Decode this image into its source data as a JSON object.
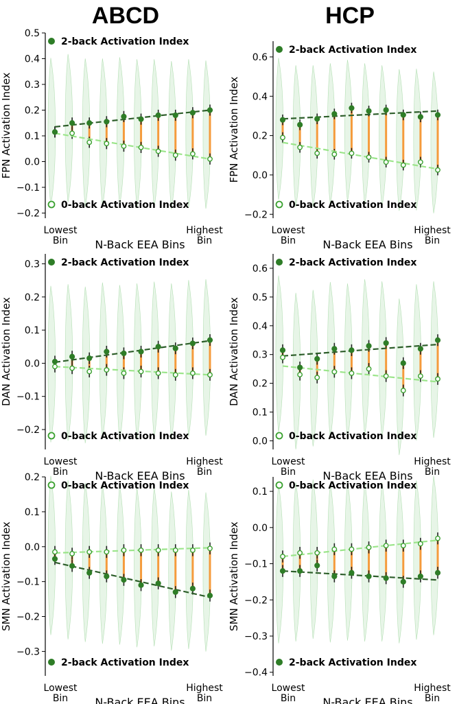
{
  "titles": {
    "left": "ABCD",
    "right": "HCP"
  },
  "colors": {
    "two_back": "#2e7d27",
    "zero_back": "#39a02e",
    "trend2": "#2d5e2a",
    "trend0": "#9be58a",
    "error": "#f59b3c",
    "violin": "#c9e9c9"
  },
  "chart_data": [
    {
      "type": "scatter",
      "id": "abcd-fpn",
      "ylabel": "FPN Activation Index",
      "xlabel": "N-Back EEA Bins",
      "x_tick_labels": [
        "Lowest\nBin",
        "Highest\nBin"
      ],
      "ylim": [
        -0.22,
        0.5
      ],
      "yticks": [
        -0.2,
        -0.1,
        0.0,
        0.1,
        0.2,
        0.3,
        0.4,
        0.5
      ],
      "y_tick_labels": [
        "−0.2",
        "−0.1",
        "0.0",
        "0.1",
        "0.2",
        "0.3",
        "0.4",
        "0.5"
      ],
      "legend_top": "2-back Activation Index",
      "legend_bottom": "0-back Activation Index",
      "bins": 10,
      "two_back": [
        0.115,
        0.15,
        0.15,
        0.155,
        0.175,
        0.165,
        0.18,
        0.18,
        0.19,
        0.2
      ],
      "zero_back": [
        0.115,
        0.11,
        0.075,
        0.07,
        0.06,
        0.055,
        0.04,
        0.025,
        0.03,
        0.01
      ],
      "trend_two_back": [
        0.135,
        0.2
      ],
      "trend_zero_back": [
        0.11,
        0.01
      ]
    },
    {
      "type": "scatter",
      "id": "hcp-fpn",
      "ylabel": "FPN Activation Index",
      "xlabel": "N-Back EEA Bins",
      "x_tick_labels": [
        "Lowest\nBin",
        "Highest\nBin"
      ],
      "ylim": [
        -0.22,
        0.68
      ],
      "yticks": [
        -0.2,
        0.0,
        0.2,
        0.4,
        0.6
      ],
      "y_tick_labels": [
        "−0.2",
        "0.0",
        "0.2",
        "0.4",
        "0.6"
      ],
      "legend_top": "2-back Activation Index",
      "legend_bottom": "0-back Activation Index",
      "bins": 10,
      "two_back": [
        0.28,
        0.255,
        0.285,
        0.31,
        0.34,
        0.325,
        0.33,
        0.305,
        0.295,
        0.305
      ],
      "zero_back": [
        0.19,
        0.14,
        0.11,
        0.105,
        0.11,
        0.09,
        0.065,
        0.05,
        0.065,
        0.025
      ],
      "trend_two_back": [
        0.285,
        0.325
      ],
      "trend_zero_back": [
        0.165,
        0.03
      ]
    },
    {
      "type": "scatter",
      "id": "abcd-dan",
      "ylabel": "DAN Activation Index",
      "xlabel": "N-Back EEA Bins",
      "x_tick_labels": [
        "Lowest\nBin",
        "Highest\nBin"
      ],
      "ylim": [
        -0.26,
        0.33
      ],
      "yticks": [
        -0.2,
        -0.1,
        0.0,
        0.1,
        0.2,
        0.3
      ],
      "y_tick_labels": [
        "−0.2",
        "−0.1",
        "0.0",
        "0.1",
        "0.2",
        "0.3"
      ],
      "legend_top": "2-back Activation Index",
      "legend_bottom": "0-back Activation Index",
      "bins": 10,
      "two_back": [
        0.005,
        0.02,
        0.015,
        0.035,
        0.03,
        0.035,
        0.05,
        0.045,
        0.06,
        0.07
      ],
      "zero_back": [
        -0.01,
        -0.015,
        -0.025,
        -0.02,
        -0.03,
        -0.025,
        -0.03,
        -0.035,
        -0.03,
        -0.035
      ],
      "trend_two_back": [
        0.003,
        0.068
      ],
      "trend_zero_back": [
        -0.01,
        -0.035
      ]
    },
    {
      "type": "scatter",
      "id": "hcp-dan",
      "ylabel": "DAN Activation Index",
      "xlabel": "N-Back EEA Bins",
      "x_tick_labels": [
        "Lowest\nBin",
        "Highest\nBin"
      ],
      "ylim": [
        -0.03,
        0.65
      ],
      "yticks": [
        0.0,
        0.1,
        0.2,
        0.3,
        0.4,
        0.5,
        0.6
      ],
      "y_tick_labels": [
        "0.0",
        "0.1",
        "0.2",
        "0.3",
        "0.4",
        "0.5",
        "0.6"
      ],
      "legend_top": "2-back Activation Index",
      "legend_bottom": "0-back Activation Index",
      "bins": 10,
      "two_back": [
        0.315,
        0.255,
        0.285,
        0.32,
        0.315,
        0.33,
        0.34,
        0.27,
        0.32,
        0.35
      ],
      "zero_back": [
        0.29,
        0.23,
        0.22,
        0.24,
        0.235,
        0.25,
        0.225,
        0.175,
        0.225,
        0.215
      ],
      "trend_two_back": [
        0.295,
        0.335
      ],
      "trend_zero_back": [
        0.26,
        0.205
      ]
    },
    {
      "type": "scatter",
      "id": "abcd-smn",
      "ylabel": "SMN Activation Index",
      "xlabel": "N-Back EEA Bins",
      "x_tick_labels": [
        "Lowest\nBin",
        "Highest\nBin"
      ],
      "ylim": [
        -0.37,
        0.2
      ],
      "yticks": [
        -0.3,
        -0.2,
        -0.1,
        0.0,
        0.1,
        0.2
      ],
      "y_tick_labels": [
        "−0.3",
        "−0.2",
        "−0.1",
        "0.0",
        "0.1",
        "0.2"
      ],
      "legend_top": "0-back Activation Index",
      "legend_bottom": "2-back Activation Index",
      "legend_top_series": "zero_back",
      "legend_bottom_series": "two_back",
      "bins": 10,
      "two_back": [
        -0.035,
        -0.055,
        -0.075,
        -0.085,
        -0.095,
        -0.11,
        -0.105,
        -0.13,
        -0.12,
        -0.14
      ],
      "zero_back": [
        -0.015,
        -0.02,
        -0.015,
        -0.015,
        -0.01,
        -0.01,
        -0.01,
        -0.01,
        -0.01,
        -0.005
      ],
      "trend_two_back": [
        -0.045,
        -0.145
      ],
      "trend_zero_back": [
        -0.018,
        -0.003
      ]
    },
    {
      "type": "scatter",
      "id": "hcp-smn",
      "ylabel": "SMN Activation Index",
      "xlabel": "N-Back EEA Bins",
      "x_tick_labels": [
        "Lowest\nBin",
        "Highest\nBin"
      ],
      "ylim": [
        -0.41,
        0.14
      ],
      "yticks": [
        -0.4,
        -0.3,
        -0.2,
        -0.1,
        0.0,
        0.1
      ],
      "y_tick_labels": [
        "−0.4",
        "−0.3",
        "−0.2",
        "−0.1",
        "0.0",
        "0.1"
      ],
      "legend_top": "0-back Activation Index",
      "legend_bottom": "2-back Activation Index",
      "legend_top_series": "zero_back",
      "legend_bottom_series": "two_back",
      "bins": 10,
      "two_back": [
        -0.12,
        -0.12,
        -0.105,
        -0.135,
        -0.125,
        -0.135,
        -0.14,
        -0.15,
        -0.135,
        -0.125
      ],
      "zero_back": [
        -0.08,
        -0.07,
        -0.07,
        -0.06,
        -0.06,
        -0.055,
        -0.05,
        -0.05,
        -0.045,
        -0.03
      ],
      "trend_two_back": [
        -0.12,
        -0.145
      ],
      "trend_zero_back": [
        -0.08,
        -0.035
      ]
    }
  ]
}
